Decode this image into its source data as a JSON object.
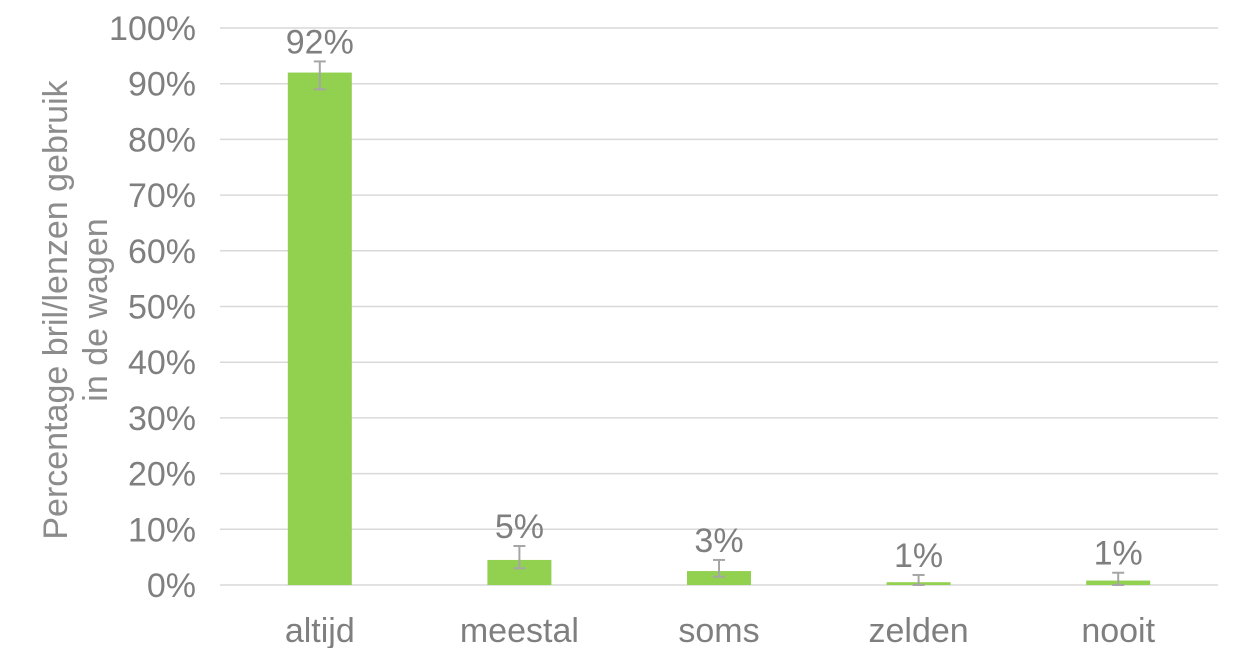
{
  "chart_data": {
    "type": "bar",
    "categories": [
      "altijd",
      "meestal",
      "soms",
      "zelden",
      "nooit"
    ],
    "values": [
      92,
      4.5,
      2.5,
      0.5,
      0.8
    ],
    "data_labels": [
      "92%",
      "5%",
      "3%",
      "1%",
      "1%"
    ],
    "error_bars": [
      [
        89,
        94
      ],
      [
        3,
        7
      ],
      [
        1.5,
        4.5
      ],
      [
        0,
        1.8
      ],
      [
        0,
        2.2
      ]
    ],
    "ylabel_lines": [
      "Percentage bril/lenzen gebruik",
      "in de wagen"
    ],
    "xlabel": "",
    "ylim": [
      0,
      100
    ],
    "yticks": [
      0,
      10,
      20,
      30,
      40,
      50,
      60,
      70,
      80,
      90,
      100
    ],
    "ytick_labels": [
      "0%",
      "10%",
      "20%",
      "30%",
      "40%",
      "50%",
      "60%",
      "70%",
      "80%",
      "90%",
      "100%"
    ],
    "grid": true,
    "colors": {
      "bar": "#92d050",
      "grid": "#d9d9d9",
      "error": "#a6a6a6",
      "text": "#7f7f7f"
    }
  }
}
